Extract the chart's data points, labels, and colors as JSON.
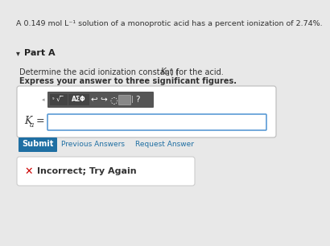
{
  "header_text": "A 0.149 mol L⁻¹ solution of a monoprotic acid has a percent ionization of 2.74%.",
  "header_bg": "#cfe2f3",
  "body_bg": "#e8e8e8",
  "part_arrow": "▾",
  "part_label": "Part A",
  "instruction1a": "Determine the acid ionization constant (",
  "instruction1b": "K",
  "instruction1c": "a",
  "instruction1d": ") for the acid.",
  "instruction2": "Express your answer to three significant figures.",
  "ka_left": "K",
  "ka_sub": "a",
  "ka_eq": " =",
  "toolbar_dark": "#555555",
  "toolbar_med": "#666666",
  "submit_bg": "#1f6fa3",
  "submit_text": "Submit",
  "prev_answers": "Previous Answers",
  "request_answer": "Request Answer",
  "incorrect_text": "Incorrect; Try Again",
  "x_color": "#cc0000",
  "white": "#ffffff",
  "border_light": "#cccccc",
  "blue_border": "#5b9bd5",
  "text_dark": "#333333",
  "text_blue": "#1f6fa3"
}
